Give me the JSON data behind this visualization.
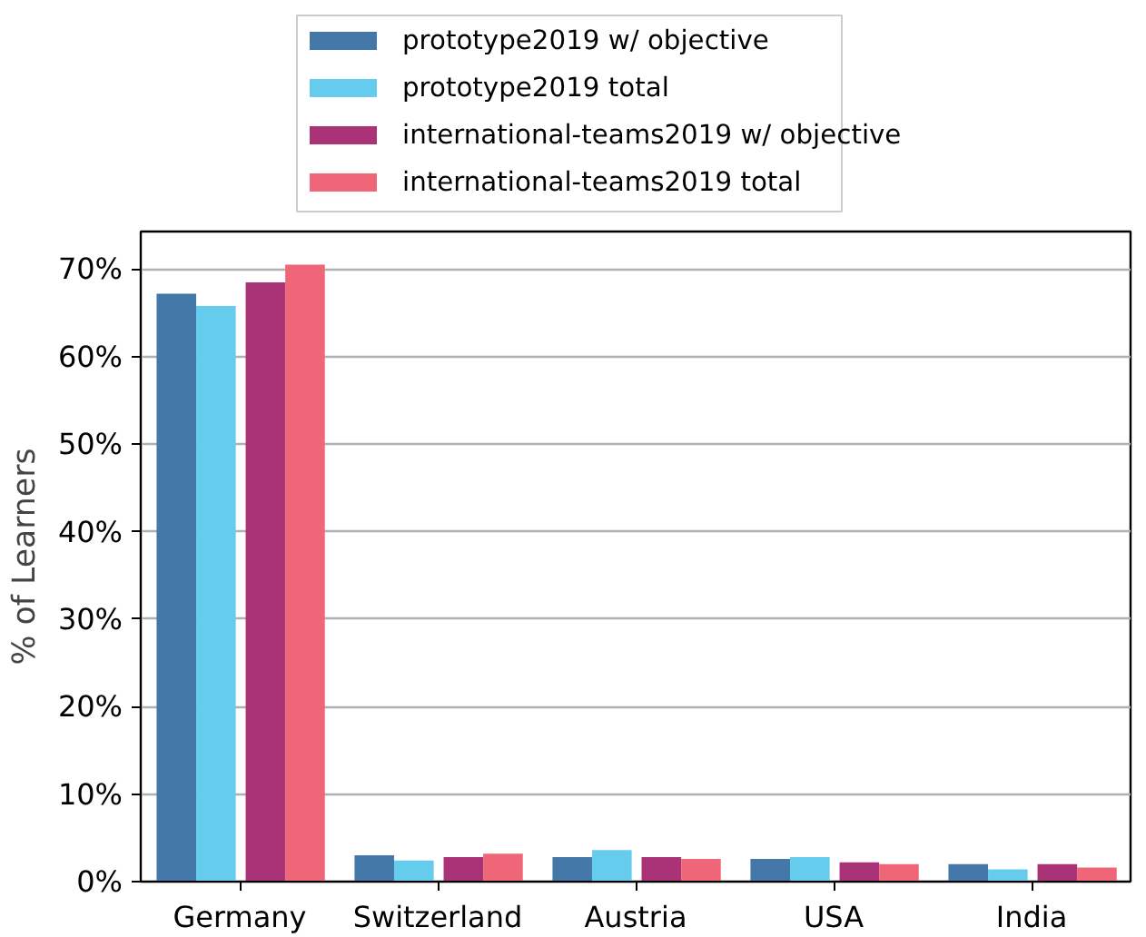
{
  "chart_data": {
    "type": "bar",
    "ylabel": "% of Learners",
    "categories": [
      "Germany",
      "Switzerland",
      "Austria",
      "USA",
      "India"
    ],
    "series": [
      {
        "name": "prototype2019 w/ objective",
        "color": "#4478a8",
        "values": [
          67.2,
          3.0,
          2.8,
          2.6,
          2.0
        ]
      },
      {
        "name": "prototype2019 total",
        "color": "#66ccee",
        "values": [
          65.8,
          2.4,
          3.6,
          2.8,
          1.4
        ]
      },
      {
        "name": "international-teams2019 w/ objective",
        "color": "#aa3377",
        "values": [
          68.5,
          2.8,
          2.8,
          2.2,
          2.0
        ]
      },
      {
        "name": "international-teams2019 total",
        "color": "#ee6677",
        "values": [
          70.5,
          3.2,
          2.6,
          2.0,
          1.6
        ]
      }
    ],
    "ylim": [
      0,
      74.3
    ],
    "yticks": [
      {
        "value": 0,
        "label": "0%"
      },
      {
        "value": 10,
        "label": "10%"
      },
      {
        "value": 20,
        "label": "20%"
      },
      {
        "value": 30,
        "label": "30%"
      },
      {
        "value": 40,
        "label": "40%"
      },
      {
        "value": 50,
        "label": "50%"
      },
      {
        "value": 60,
        "label": "60%"
      },
      {
        "value": 70,
        "label": "70%"
      }
    ],
    "grid": "y",
    "legend": "top left"
  }
}
